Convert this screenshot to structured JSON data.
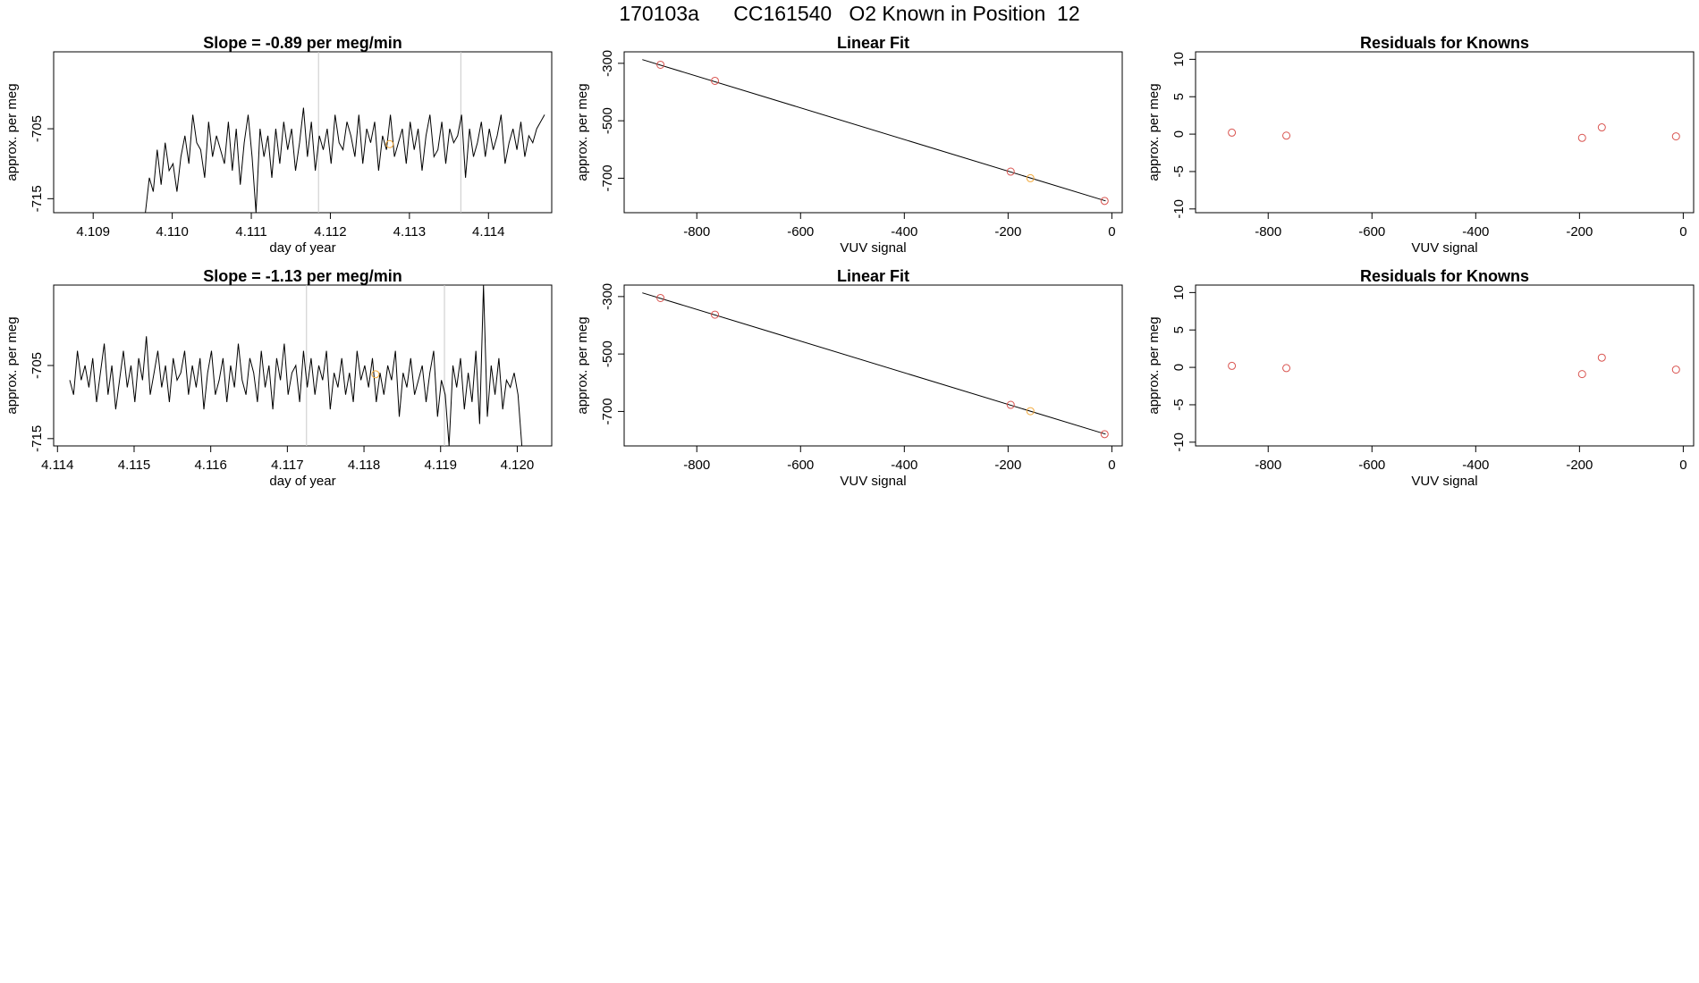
{
  "title": "170103a      CC161540   O2 Known in Position  12",
  "chart_data": [
    {
      "type": "line",
      "title": "Slope =  -0.89  per meg/min",
      "xlabel": "day of year",
      "ylabel": "approx. per meg",
      "xlim": [
        4.1085,
        4.1148
      ],
      "ylim": [
        -717,
        -694
      ],
      "xticks": [
        "4.109",
        "4.110",
        "4.111",
        "4.112",
        "4.113",
        "4.114"
      ],
      "yticks": [
        "-705",
        "-715"
      ],
      "vlines": [
        4.11185,
        4.11365
      ],
      "marker": {
        "x": 4.11275,
        "y": -707.2,
        "color": "#f2a93b"
      },
      "x": [
        4.10966,
        4.10971,
        4.10976,
        4.10981,
        4.10986,
        4.10991,
        4.10996,
        4.11001,
        4.11006,
        4.11011,
        4.11016,
        4.11021,
        4.11026,
        4.11031,
        4.11036,
        4.11041,
        4.11046,
        4.11051,
        4.11056,
        4.11061,
        4.11066,
        4.11071,
        4.11076,
        4.11081,
        4.11086,
        4.11091,
        4.11096,
        4.11101,
        4.11106,
        4.11111,
        4.11116,
        4.11121,
        4.11126,
        4.11131,
        4.11136,
        4.11141,
        4.11146,
        4.11151,
        4.11156,
        4.11161,
        4.11166,
        4.11171,
        4.11176,
        4.11181,
        4.11186,
        4.11191,
        4.11196,
        4.11201,
        4.11206,
        4.11211,
        4.11216,
        4.11221,
        4.11226,
        4.11231,
        4.11236,
        4.11241,
        4.11246,
        4.11251,
        4.11256,
        4.11261,
        4.11266,
        4.11271,
        4.11276,
        4.11281,
        4.11286,
        4.11291,
        4.11296,
        4.11301,
        4.11306,
        4.11311,
        4.11316,
        4.11321,
        4.11326,
        4.11331,
        4.11336,
        4.11341,
        4.11346,
        4.11351,
        4.11356,
        4.11361,
        4.11366,
        4.11371,
        4.11376,
        4.11381,
        4.11386,
        4.11391,
        4.11396,
        4.11401,
        4.11406,
        4.11411,
        4.11416,
        4.11421,
        4.11426,
        4.11431,
        4.11436,
        4.11441,
        4.11446,
        4.11451,
        4.11456,
        4.11461,
        4.11466,
        4.11471
      ],
      "y": [
        -717,
        -712,
        -714,
        -708,
        -713,
        -707,
        -711,
        -710,
        -714,
        -709,
        -706,
        -710,
        -703,
        -707,
        -708,
        -712,
        -704,
        -709,
        -706,
        -708,
        -710,
        -704,
        -711,
        -705,
        -713,
        -707,
        -703,
        -709,
        -717,
        -705,
        -709,
        -706,
        -712,
        -705,
        -710,
        -704,
        -708,
        -705,
        -711,
        -707,
        -702,
        -709,
        -704,
        -711,
        -706,
        -708,
        -705,
        -710,
        -703,
        -707,
        -708,
        -704,
        -706,
        -709,
        -703,
        -710,
        -705,
        -707,
        -704,
        -711,
        -706,
        -708,
        -703,
        -709,
        -707,
        -705,
        -710,
        -704,
        -708,
        -705,
        -711,
        -706,
        -703,
        -709,
        -708,
        -704,
        -710,
        -705,
        -707,
        -706,
        -703,
        -712,
        -705,
        -709,
        -707,
        -704,
        -709,
        -705,
        -708,
        -706,
        -703,
        -710,
        -707,
        -705,
        -708,
        -704,
        -709,
        -706,
        -707,
        -705,
        -704,
        -703
      ]
    },
    {
      "type": "scatter",
      "title": "Linear Fit",
      "xlabel": "VUV signal",
      "ylabel": "approx. per meg",
      "xlim": [
        -940,
        20
      ],
      "ylim": [
        -820,
        -260
      ],
      "xticks": [
        "-800",
        "-600",
        "-400",
        "-200",
        "0"
      ],
      "yticks": [
        "-300",
        "-500",
        "-700"
      ],
      "fit_line": {
        "x": [
          -905,
          -12
        ],
        "y": [
          -287,
          -779
        ]
      },
      "points": [
        {
          "x": -870,
          "y": -305,
          "color": "#d9534f"
        },
        {
          "x": -765,
          "y": -361,
          "color": "#d9534f"
        },
        {
          "x": -195,
          "y": -677,
          "color": "#d9534f"
        },
        {
          "x": -157,
          "y": -700,
          "color": "#f2a93b"
        },
        {
          "x": -14,
          "y": -779,
          "color": "#d9534f"
        }
      ]
    },
    {
      "type": "scatter",
      "title": "Residuals for Knowns",
      "xlabel": "VUV signal",
      "ylabel": "approx. per meg",
      "xlim": [
        -940,
        20
      ],
      "ylim": [
        -10.5,
        11
      ],
      "xticks": [
        "-800",
        "-600",
        "-400",
        "-200",
        "0"
      ],
      "yticks": [
        "10",
        "5",
        "0",
        "-5",
        "-10"
      ],
      "points": [
        {
          "x": -870,
          "y": 0.2,
          "color": "#d9534f"
        },
        {
          "x": -765,
          "y": -0.2,
          "color": "#d9534f"
        },
        {
          "x": -195,
          "y": -0.5,
          "color": "#d9534f"
        },
        {
          "x": -157,
          "y": 0.9,
          "color": "#d9534f"
        },
        {
          "x": -14,
          "y": -0.3,
          "color": "#d9534f"
        }
      ]
    },
    {
      "type": "line",
      "title": "Slope =  -1.13  per meg/min",
      "xlabel": "day of year",
      "ylabel": "approx. per meg",
      "xlim": [
        4.11395,
        4.12045
      ],
      "ylim": [
        -716,
        -694
      ],
      "xticks": [
        "4.114",
        "4.115",
        "4.116",
        "4.117",
        "4.118",
        "4.119",
        "4.120"
      ],
      "yticks": [
        "-705",
        "-715"
      ],
      "vlines": [
        4.11725,
        4.11905
      ],
      "marker": {
        "x": 4.11815,
        "y": -706.2,
        "color": "#f2a93b"
      },
      "x": [
        4.11416,
        4.11421,
        4.11426,
        4.11431,
        4.11436,
        4.11441,
        4.11446,
        4.11451,
        4.11456,
        4.11461,
        4.11466,
        4.11471,
        4.11476,
        4.11481,
        4.11486,
        4.11491,
        4.11496,
        4.11501,
        4.11506,
        4.11511,
        4.11516,
        4.11521,
        4.11526,
        4.11531,
        4.11536,
        4.11541,
        4.11546,
        4.11551,
        4.11556,
        4.11561,
        4.11566,
        4.11571,
        4.11576,
        4.11581,
        4.11586,
        4.11591,
        4.11596,
        4.11601,
        4.11606,
        4.11611,
        4.11616,
        4.11621,
        4.11626,
        4.11631,
        4.11636,
        4.11641,
        4.11646,
        4.11651,
        4.11656,
        4.11661,
        4.11666,
        4.11671,
        4.11676,
        4.11681,
        4.11686,
        4.11691,
        4.11696,
        4.11701,
        4.11706,
        4.11711,
        4.11716,
        4.11721,
        4.11726,
        4.11731,
        4.11736,
        4.11741,
        4.11746,
        4.11751,
        4.11756,
        4.11761,
        4.11766,
        4.11771,
        4.11776,
        4.11781,
        4.11786,
        4.11791,
        4.11796,
        4.11801,
        4.11806,
        4.11811,
        4.11816,
        4.11821,
        4.11826,
        4.11831,
        4.11836,
        4.11841,
        4.11846,
        4.11851,
        4.11856,
        4.11861,
        4.11866,
        4.11871,
        4.11876,
        4.11881,
        4.11886,
        4.11891,
        4.11896,
        4.11901,
        4.11906,
        4.11911,
        4.11916,
        4.11921,
        4.11926,
        4.11931,
        4.11936,
        4.11941,
        4.11946,
        4.11951,
        4.11956,
        4.11961,
        4.11966,
        4.11971,
        4.11976,
        4.11981,
        4.11986,
        4.11991,
        4.11996,
        4.12001,
        4.12006
      ],
      "y": [
        -707,
        -709,
        -703,
        -707,
        -705,
        -708,
        -704,
        -710,
        -706,
        -702,
        -709,
        -705,
        -711,
        -707,
        -703,
        -708,
        -705,
        -710,
        -704,
        -707,
        -701,
        -709,
        -706,
        -703,
        -708,
        -705,
        -710,
        -704,
        -707,
        -706,
        -703,
        -709,
        -705,
        -708,
        -704,
        -711,
        -706,
        -703,
        -709,
        -707,
        -704,
        -710,
        -705,
        -708,
        -702,
        -707,
        -709,
        -704,
        -706,
        -710,
        -703,
        -708,
        -705,
        -711,
        -704,
        -707,
        -702,
        -709,
        -706,
        -705,
        -710,
        -703,
        -708,
        -704,
        -709,
        -705,
        -707,
        -703,
        -711,
        -706,
        -708,
        -704,
        -709,
        -706,
        -710,
        -703,
        -707,
        -705,
        -708,
        -704,
        -710,
        -706,
        -709,
        -705,
        -707,
        -703,
        -712,
        -706,
        -708,
        -704,
        -709,
        -707,
        -705,
        -710,
        -706,
        -703,
        -712,
        -707,
        -709,
        -716,
        -705,
        -708,
        -704,
        -711,
        -706,
        -710,
        -703,
        -713,
        -694,
        -712,
        -705,
        -709,
        -704,
        -711,
        -707,
        -708,
        -706,
        -709,
        -716
      ]
    },
    {
      "type": "scatter",
      "title": "Linear Fit",
      "xlabel": "VUV signal",
      "ylabel": "approx. per meg",
      "xlim": [
        -940,
        20
      ],
      "ylim": [
        -820,
        -260
      ],
      "xticks": [
        "-800",
        "-600",
        "-400",
        "-200",
        "0"
      ],
      "yticks": [
        "-300",
        "-500",
        "-700"
      ],
      "fit_line": {
        "x": [
          -905,
          -12
        ],
        "y": [
          -287,
          -779
        ]
      },
      "points": [
        {
          "x": -870,
          "y": -305,
          "color": "#d9534f"
        },
        {
          "x": -765,
          "y": -363,
          "color": "#d9534f"
        },
        {
          "x": -195,
          "y": -677,
          "color": "#d9534f"
        },
        {
          "x": -157,
          "y": -699,
          "color": "#f2a93b"
        },
        {
          "x": -14,
          "y": -779,
          "color": "#d9534f"
        }
      ]
    },
    {
      "type": "scatter",
      "title": "Residuals for Knowns",
      "xlabel": "VUV signal",
      "ylabel": "approx. per meg",
      "xlim": [
        -940,
        20
      ],
      "ylim": [
        -10.5,
        11
      ],
      "xticks": [
        "-800",
        "-600",
        "-400",
        "-200",
        "0"
      ],
      "yticks": [
        "10",
        "5",
        "0",
        "-5",
        "-10"
      ],
      "points": [
        {
          "x": -870,
          "y": 0.2,
          "color": "#d9534f"
        },
        {
          "x": -765,
          "y": -0.1,
          "color": "#d9534f"
        },
        {
          "x": -195,
          "y": -0.9,
          "color": "#d9534f"
        },
        {
          "x": -157,
          "y": 1.3,
          "color": "#d9534f"
        },
        {
          "x": -14,
          "y": -0.3,
          "color": "#d9534f"
        }
      ]
    }
  ]
}
